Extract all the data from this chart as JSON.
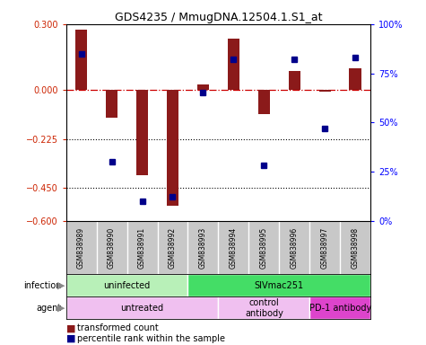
{
  "title": "GDS4235 / MmugDNA.12504.1.S1_at",
  "samples": [
    "GSM838989",
    "GSM838990",
    "GSM838991",
    "GSM838992",
    "GSM838993",
    "GSM838994",
    "GSM838995",
    "GSM838996",
    "GSM838997",
    "GSM838998"
  ],
  "red_values": [
    0.275,
    -0.13,
    -0.39,
    -0.53,
    0.025,
    0.235,
    -0.11,
    0.085,
    -0.01,
    0.1
  ],
  "blue_values_pct": [
    85,
    30,
    10,
    12,
    65,
    82,
    28,
    82,
    47,
    83
  ],
  "ylim_left": [
    -0.6,
    0.3
  ],
  "ylim_right": [
    0,
    100
  ],
  "yticks_left": [
    0.3,
    0,
    -0.225,
    -0.45,
    -0.6
  ],
  "yticks_right": [
    100,
    75,
    50,
    25,
    0
  ],
  "ytick_labels_right": [
    "100%",
    "75%",
    "50%",
    "25%",
    "0%"
  ],
  "hlines_dotted": [
    -0.225,
    -0.45
  ],
  "infection_groups": [
    {
      "label": "uninfected",
      "start": 0,
      "end": 4,
      "color": "#b8f0b8"
    },
    {
      "label": "SIVmac251",
      "start": 4,
      "end": 10,
      "color": "#44dd66"
    }
  ],
  "agent_groups": [
    {
      "label": "untreated",
      "start": 0,
      "end": 5,
      "color": "#f0c0f0"
    },
    {
      "label": "control\nantibody",
      "start": 5,
      "end": 8,
      "color": "#f0c0f0"
    },
    {
      "label": "PD-1 antibody",
      "start": 8,
      "end": 10,
      "color": "#dd44cc"
    }
  ],
  "bar_color_red": "#8b1a1a",
  "bar_color_blue": "#00008b",
  "sample_label_bg": "#c8c8c8",
  "bar_width": 0.4
}
